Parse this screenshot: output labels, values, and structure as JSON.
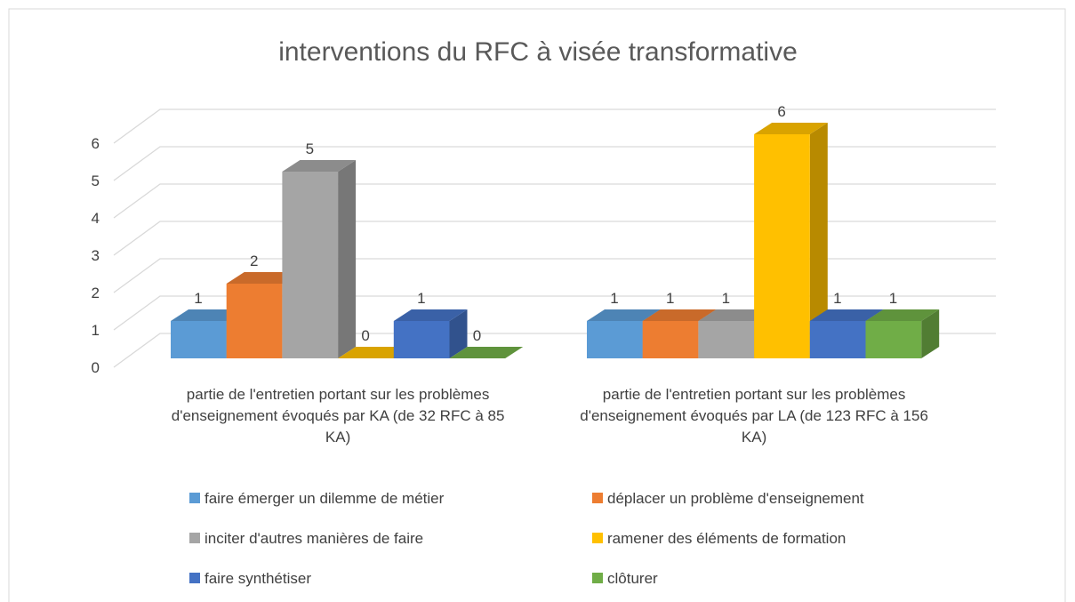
{
  "chart_data": {
    "type": "bar3d",
    "title": "interventions du RFC à visée transformative",
    "categories": [
      "partie de l'entretien portant sur les problèmes d'enseignement évoqués par KA (de 32 RFC à 85 KA)",
      "partie de l'entretien portant sur les problèmes d'enseignement évoqués par LA (de 123 RFC à 156 KA)"
    ],
    "series": [
      {
        "name": "faire émerger un dilemme de métier",
        "color": "#5b9bd5",
        "values": [
          1,
          1
        ]
      },
      {
        "name": "déplacer un problème d'enseignement",
        "color": "#ed7d31",
        "values": [
          2,
          1
        ]
      },
      {
        "name": "inciter d'autres manières de faire",
        "color": "#a5a5a5",
        "values": [
          5,
          1
        ]
      },
      {
        "name": "ramener des éléments de formation",
        "color": "#ffc000",
        "values": [
          0,
          6
        ]
      },
      {
        "name": "faire synthétiser",
        "color": "#4472c4",
        "values": [
          1,
          1
        ]
      },
      {
        "name": "clôturer",
        "color": "#70ad47",
        "values": [
          0,
          1
        ]
      }
    ],
    "ylim": [
      0,
      6
    ],
    "yticks": [
      0,
      1,
      2,
      3,
      4,
      5,
      6
    ],
    "grid": true,
    "legend": "bottom",
    "data_labels": true
  }
}
